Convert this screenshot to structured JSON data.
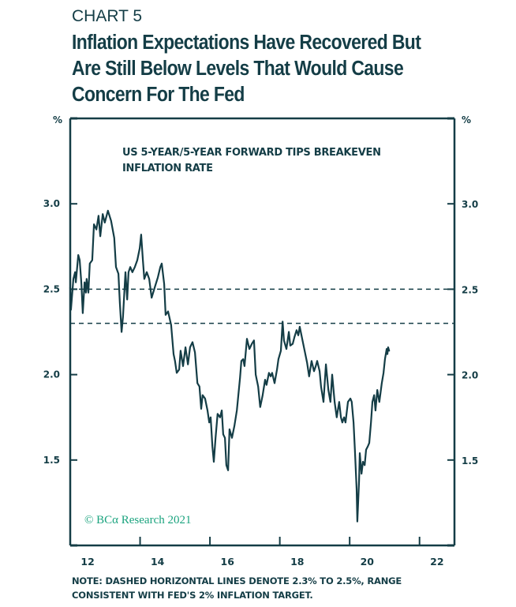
{
  "header": {
    "chart_number": "CHART 5",
    "title_lines": [
      "Inflation Expectations Have Recovered But",
      "Are Still Below Levels That Would Cause",
      "Concern For The Fed"
    ]
  },
  "footer": {
    "note_lines": [
      "NOTE: DASHED HORIZONTAL LINES DENOTE 2.3% TO 2.5%, RANGE",
      "CONSISTENT WITH FED'S 2% INFLATION TARGET."
    ]
  },
  "copyright": "© BCα Research 2021",
  "colors": {
    "line": "#143d46",
    "axis": "#143d46",
    "copyright": "#1aa37e",
    "text": "#143d46"
  },
  "chart_data": {
    "type": "line",
    "title": "US 5-YEAR/5-YEAR FORWARD TIPS BREAKEVEN INFLATION RATE",
    "series_label_lines": [
      "US 5-YEAR/5-YEAR FORWARD TIPS BREAKEVEN",
      "INFLATION RATE"
    ],
    "xlabel": "",
    "ylabel_left": "%",
    "ylabel_right": "%",
    "xlim": [
      2012.0,
      2023.0
    ],
    "ylim": [
      1.0,
      3.5
    ],
    "x_tick_labels": [
      {
        "label": "12",
        "x": 2012.5
      },
      {
        "label": "14",
        "x": 2014.5
      },
      {
        "label": "16",
        "x": 2016.5
      },
      {
        "label": "18",
        "x": 2018.5
      },
      {
        "label": "20",
        "x": 2020.5
      },
      {
        "label": "22",
        "x": 2022.5
      }
    ],
    "x_tick_marks": [
      2014,
      2016,
      2018,
      2020,
      2022
    ],
    "y_ticks": [
      {
        "label": "3.0",
        "y": 3.0
      },
      {
        "label": "2.5",
        "y": 2.5
      },
      {
        "label": "2.0",
        "y": 2.0
      },
      {
        "label": "1.5",
        "y": 1.5
      }
    ],
    "reference_lines": [
      {
        "y": 2.5,
        "style": "dashed"
      },
      {
        "y": 2.3,
        "style": "dashed"
      }
    ],
    "grid": false,
    "legend": "none",
    "series": [
      {
        "name": "US 5-Year/5-Year Forward TIPS Breakeven Inflation Rate",
        "x": [
          2012.0,
          2012.02,
          2012.09,
          2012.14,
          2012.16,
          2012.23,
          2012.27,
          2012.32,
          2012.36,
          2012.41,
          2012.45,
          2012.47,
          2012.52,
          2012.56,
          2012.63,
          2012.68,
          2012.75,
          2012.81,
          2012.86,
          2012.93,
          2012.99,
          2013.08,
          2013.17,
          2013.26,
          2013.31,
          2013.38,
          2013.42,
          2013.47,
          2013.51,
          2013.58,
          2013.63,
          2013.67,
          2013.72,
          2013.78,
          2013.85,
          2013.92,
          2013.99,
          2014.03,
          2014.08,
          2014.12,
          2014.19,
          2014.26,
          2014.33,
          2014.42,
          2014.51,
          2014.58,
          2014.62,
          2014.69,
          2014.73,
          2014.8,
          2014.89,
          2014.96,
          2015.0,
          2015.05,
          2015.12,
          2015.16,
          2015.23,
          2015.3,
          2015.37,
          2015.43,
          2015.5,
          2015.57,
          2015.64,
          2015.7,
          2015.75,
          2015.79,
          2015.86,
          2015.93,
          2015.98,
          2016.02,
          2016.07,
          2016.11,
          2016.16,
          2016.22,
          2016.29,
          2016.34,
          2016.38,
          2016.43,
          2016.47,
          2016.52,
          2016.56,
          2016.63,
          2016.7,
          2016.77,
          2016.86,
          2016.9,
          2016.95,
          2016.99,
          2017.06,
          2017.13,
          2017.2,
          2017.26,
          2017.31,
          2017.38,
          2017.44,
          2017.51,
          2017.58,
          2017.62,
          2017.69,
          2017.74,
          2017.78,
          2017.85,
          2017.92,
          2017.96,
          2018.03,
          2018.08,
          2018.12,
          2018.19,
          2018.26,
          2018.3,
          2018.37,
          2018.42,
          2018.48,
          2018.53,
          2018.57,
          2018.64,
          2018.71,
          2018.78,
          2018.84,
          2018.91,
          2018.98,
          2019.03,
          2019.07,
          2019.14,
          2019.18,
          2019.25,
          2019.32,
          2019.39,
          2019.45,
          2019.5,
          2019.57,
          2019.63,
          2019.7,
          2019.75,
          2019.79,
          2019.84,
          2019.88,
          2019.95,
          2020.02,
          2020.06,
          2020.11,
          2020.15,
          2020.2,
          2020.22,
          2020.27,
          2020.29,
          2020.34,
          2020.38,
          2020.43,
          2020.47,
          2020.52,
          2020.56,
          2020.61,
          2020.65,
          2020.7,
          2020.74,
          2020.79,
          2020.85,
          2020.92,
          2020.97,
          2021.01,
          2021.06,
          2021.08,
          2021.1,
          2021.13
        ],
        "values": [
          2.51,
          2.38,
          2.56,
          2.6,
          2.54,
          2.7,
          2.67,
          2.53,
          2.36,
          2.54,
          2.48,
          2.56,
          2.48,
          2.65,
          2.67,
          2.88,
          2.85,
          2.93,
          2.81,
          2.94,
          2.89,
          2.96,
          2.9,
          2.8,
          2.63,
          2.59,
          2.42,
          2.25,
          2.34,
          2.6,
          2.44,
          2.6,
          2.63,
          2.6,
          2.63,
          2.67,
          2.74,
          2.82,
          2.67,
          2.56,
          2.6,
          2.56,
          2.45,
          2.51,
          2.57,
          2.63,
          2.65,
          2.53,
          2.35,
          2.37,
          2.29,
          2.12,
          2.08,
          2.01,
          2.03,
          2.14,
          2.05,
          2.16,
          2.06,
          2.16,
          2.19,
          2.13,
          1.95,
          1.93,
          1.8,
          1.88,
          1.86,
          1.79,
          1.72,
          1.75,
          1.58,
          1.49,
          1.63,
          1.77,
          1.75,
          1.79,
          1.65,
          1.63,
          1.47,
          1.44,
          1.68,
          1.63,
          1.7,
          1.79,
          1.98,
          2.08,
          2.09,
          2.05,
          2.21,
          2.15,
          2.18,
          2.2,
          2.0,
          1.93,
          1.81,
          1.88,
          1.97,
          1.94,
          2.01,
          1.99,
          2.01,
          1.95,
          2.03,
          2.09,
          2.14,
          2.31,
          2.2,
          2.15,
          2.25,
          2.17,
          2.18,
          2.22,
          2.26,
          2.23,
          2.28,
          2.21,
          2.14,
          2.07,
          1.99,
          2.08,
          2.02,
          2.05,
          2.08,
          2.02,
          1.93,
          1.84,
          2.06,
          1.91,
          1.84,
          2.0,
          1.84,
          1.75,
          1.84,
          1.75,
          1.72,
          1.75,
          1.72,
          1.84,
          1.86,
          1.84,
          1.72,
          1.56,
          1.33,
          1.14,
          1.38,
          1.54,
          1.42,
          1.49,
          1.47,
          1.56,
          1.58,
          1.6,
          1.72,
          1.84,
          1.88,
          1.79,
          1.91,
          1.84,
          1.95,
          2.01,
          2.09,
          2.15,
          2.12,
          2.16,
          2.14
        ]
      }
    ],
    "annotations": [
      "© BCα Research 2021"
    ]
  }
}
